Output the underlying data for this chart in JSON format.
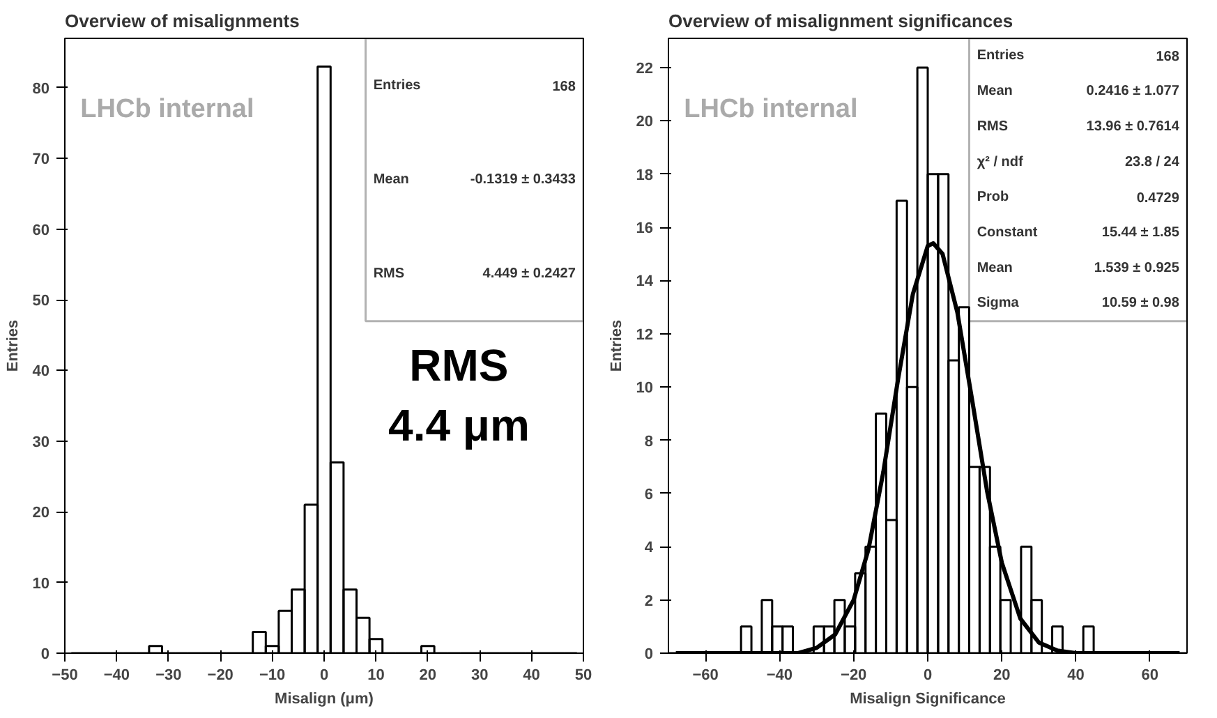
{
  "chart_data": [
    {
      "type": "histogram",
      "title": "Overview of misalignments",
      "xlabel": "Misalign (μm)",
      "ylabel": "Entries",
      "bins": [
        -48.75,
        -46.25,
        -43.75,
        -41.25,
        -38.75,
        -36.25,
        -33.75,
        -31.25,
        -28.75,
        -26.25,
        -23.75,
        -21.25,
        -18.75,
        -16.25,
        -13.75,
        -11.25,
        -8.75,
        -6.25,
        -3.75,
        -1.25,
        1.25,
        3.75,
        6.25,
        8.75,
        11.25,
        13.75,
        16.25,
        18.75,
        21.25,
        23.75,
        26.25,
        28.75,
        31.25,
        33.75,
        36.25,
        38.75,
        41.25,
        43.75,
        46.25,
        48.75
      ],
      "series": [
        {
          "color": "#000000",
          "values": [
            0,
            0,
            0,
            0,
            0,
            0,
            1,
            0,
            0,
            0,
            0,
            0,
            0,
            0,
            3,
            1,
            6,
            9,
            21,
            83,
            27,
            9,
            5,
            2,
            0,
            0,
            0,
            1,
            0,
            0,
            0,
            0,
            0,
            0,
            0,
            0,
            0,
            0,
            0
          ]
        }
      ],
      "xlim": [
        -50,
        50
      ],
      "xticks": [
        -50,
        -40,
        -30,
        -20,
        -10,
        0,
        10,
        20,
        30,
        40,
        50
      ],
      "ylim": [
        0,
        87
      ],
      "yticks": [
        0,
        10,
        20,
        30,
        40,
        50,
        60,
        70,
        80
      ],
      "annotations": [
        "LHCb internal",
        "RMS\n4.4 μm",
        "Entries  168",
        "Mean  -0.1319 ± 0.3433",
        "RMS  4.449 ± 0.2427"
      ]
    },
    {
      "type": "histogram",
      "title": "Overview of misalignment significances",
      "xlabel": "Misalign Significance",
      "ylabel": "Entries",
      "bins": [
        -70,
        -67.2,
        -64.4,
        -61.6,
        -58.8,
        -56,
        -53.2,
        -50.4,
        -47.6,
        -44.8,
        -42,
        -39.2,
        -36.4,
        -33.6,
        -30.8,
        -28,
        -25.2,
        -22.4,
        -19.6,
        -16.8,
        -14,
        -11.2,
        -8.4,
        -5.6,
        -2.8,
        0,
        2.8,
        5.6,
        8.4,
        11.2,
        14,
        16.8,
        19.6,
        22.4,
        25.2,
        28,
        30.8,
        33.6,
        36.4,
        39.2,
        42,
        44.8,
        47.6,
        50.4,
        53.2,
        56,
        58.8,
        61.6,
        64.4,
        67.2,
        70
      ],
      "series": [
        {
          "color": "#000000",
          "values": [
            0,
            0,
            0,
            0,
            0,
            0,
            0,
            1,
            0,
            2,
            1,
            1,
            0,
            0,
            1,
            1,
            2,
            1,
            3,
            4,
            9,
            5,
            17,
            10,
            22,
            18,
            18,
            11,
            13,
            7,
            7,
            4,
            2,
            0,
            4,
            2,
            0,
            1,
            0,
            0,
            1,
            0,
            0,
            0,
            0,
            0,
            0,
            0,
            0,
            0
          ]
        },
        {
          "type": "line",
          "color": "#000000",
          "x": [
            -68,
            -40,
            -35,
            -30,
            -25,
            -20,
            -16,
            -12,
            -8,
            -4,
            0,
            1.5,
            4,
            8,
            12,
            16,
            20,
            25,
            30,
            35,
            40,
            45,
            68
          ],
          "values": [
            0,
            0,
            0,
            0.2,
            0.7,
            2.0,
            3.9,
            6.8,
            10.3,
            13.5,
            15.3,
            15.4,
            15.0,
            12.8,
            9.5,
            6.1,
            3.4,
            1.3,
            0.4,
            0.1,
            0,
            0,
            0
          ]
        }
      ],
      "xlim": [
        -70,
        70
      ],
      "xticks": [
        -60,
        -40,
        -20,
        0,
        20,
        40,
        60
      ],
      "ylim": [
        0,
        23.1
      ],
      "yticks": [
        0,
        2,
        4,
        6,
        8,
        10,
        12,
        14,
        16,
        18,
        20,
        22
      ],
      "annotations": [
        "LHCb internal",
        "Entries  168",
        "Mean  0.2416 ± 1.077",
        "RMS  13.96 ± 0.7614",
        "χ² / ndf  23.8 / 24",
        "Prob  0.4729",
        "Constant  15.44 ± 1.85",
        "Mean  1.539 ± 0.925",
        "Sigma  10.59 ± 0.98"
      ]
    }
  ]
}
